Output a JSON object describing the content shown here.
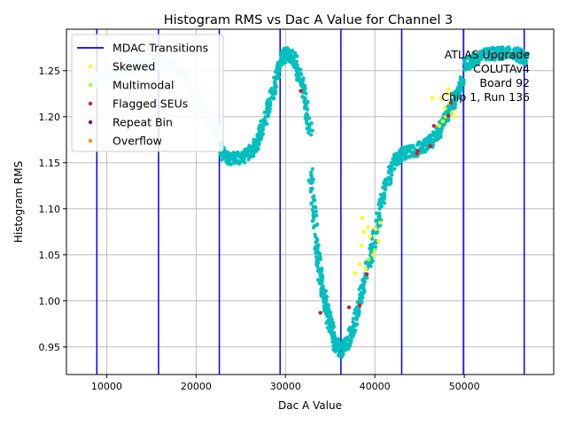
{
  "chart_data": {
    "type": "scatter",
    "title": "Histogram RMS vs Dac A Value for Channel 3",
    "xlabel": "Dac A Value",
    "ylabel": "Histogram RMS",
    "xlim": [
      5500,
      60000
    ],
    "ylim": [
      0.92,
      1.295
    ],
    "xticks": [
      10000,
      20000,
      30000,
      40000,
      50000
    ],
    "xtick_labels": [
      "10000",
      "20000",
      "30000",
      "40000",
      "50000"
    ],
    "yticks": [
      0.95,
      1.0,
      1.05,
      1.1,
      1.15,
      1.2,
      1.25
    ],
    "ytick_labels": [
      "0.95",
      "1.00",
      "1.05",
      "1.10",
      "1.15",
      "1.20",
      "1.25"
    ],
    "grid": true,
    "legend_position": "upper-left",
    "annotation_lines": [
      "ATLAS Upgrade",
      "COLUTAv4",
      "Board 92",
      "Chip 1, Run 136"
    ],
    "mdac_transitions": [
      8900,
      15800,
      22600,
      29400,
      36200,
      43000,
      49900,
      56700
    ],
    "legend": [
      {
        "label": "MDAC Transitions",
        "kind": "line",
        "color": "#0000ff"
      },
      {
        "label": "Skewed",
        "kind": "dot",
        "color": "#ffff00"
      },
      {
        "label": "Multimodal",
        "kind": "dot",
        "color": "#adff2f"
      },
      {
        "label": "Flagged SEUs",
        "kind": "dot",
        "color": "#cc2222"
      },
      {
        "label": "Repeat Bin",
        "kind": "dot",
        "color": "#800080"
      },
      {
        "label": "Overflow",
        "kind": "dot",
        "color": "#ff8c00"
      }
    ],
    "main_series_colors": {
      "teal": "#00bfbf",
      "light_cyan": "#bff0f0"
    },
    "curve_segments": [
      {
        "x": [
          8000,
          9000,
          10500,
          12000,
          14000,
          16000,
          17500,
          19000,
          20500,
          22000,
          22600
        ],
        "y": [
          1.235,
          1.24,
          1.245,
          1.252,
          1.258,
          1.26,
          1.255,
          1.24,
          1.215,
          1.19,
          1.178
        ],
        "color": "light_cyan"
      },
      {
        "x": [
          22600,
          23500,
          25000,
          26500,
          27500,
          28500,
          29400,
          30000,
          31000,
          32000,
          32800
        ],
        "y": [
          1.165,
          1.155,
          1.155,
          1.165,
          1.19,
          1.225,
          1.26,
          1.27,
          1.262,
          1.23,
          1.18
        ],
        "color": "teal"
      },
      {
        "x": [
          32800,
          33500,
          34000,
          34500,
          35000,
          35500,
          36200
        ],
        "y": [
          1.14,
          1.06,
          1.02,
          0.995,
          0.975,
          0.955,
          0.945
        ],
        "color": "teal"
      },
      {
        "x": [
          36200,
          37000,
          38000,
          39000,
          40000,
          41000,
          42000,
          43000
        ],
        "y": [
          0.945,
          0.955,
          0.985,
          1.03,
          1.07,
          1.12,
          1.148,
          1.16
        ],
        "color": "teal"
      },
      {
        "x": [
          43000,
          44500,
          46000,
          47000,
          48000,
          49000,
          49900
        ],
        "y": [
          1.16,
          1.163,
          1.17,
          1.18,
          1.2,
          1.22,
          1.24
        ],
        "color": "teal"
      },
      {
        "x": [
          49900,
          51500,
          53000,
          54500,
          56000,
          57000
        ],
        "y": [
          1.255,
          1.265,
          1.268,
          1.27,
          1.268,
          1.262
        ],
        "color": "teal"
      }
    ],
    "skewed_points": [
      {
        "x": 38500,
        "y": 1.06
      },
      {
        "x": 38800,
        "y": 1.075
      },
      {
        "x": 39200,
        "y": 1.08
      },
      {
        "x": 39500,
        "y": 1.07
      },
      {
        "x": 39800,
        "y": 1.05
      },
      {
        "x": 40100,
        "y": 1.078
      },
      {
        "x": 40400,
        "y": 1.065
      },
      {
        "x": 38300,
        "y": 1.04
      },
      {
        "x": 39000,
        "y": 1.035
      },
      {
        "x": 40600,
        "y": 1.085
      },
      {
        "x": 37800,
        "y": 1.03
      },
      {
        "x": 38600,
        "y": 1.09
      },
      {
        "x": 47400,
        "y": 1.22
      },
      {
        "x": 47800,
        "y": 1.21
      },
      {
        "x": 48100,
        "y": 1.225
      },
      {
        "x": 48400,
        "y": 1.215
      },
      {
        "x": 48700,
        "y": 1.205
      },
      {
        "x": 47600,
        "y": 1.195
      },
      {
        "x": 48900,
        "y": 1.2
      },
      {
        "x": 47200,
        "y": 1.19
      },
      {
        "x": 48200,
        "y": 1.23
      },
      {
        "x": 46400,
        "y": 1.22
      }
    ],
    "multimodal_points": [
      {
        "x": 39300,
        "y": 1.045
      },
      {
        "x": 40000,
        "y": 1.055
      },
      {
        "x": 47900,
        "y": 1.2
      }
    ],
    "flagged_seu_points": [
      {
        "x": 31700,
        "y": 1.228
      },
      {
        "x": 33900,
        "y": 0.987
      },
      {
        "x": 37100,
        "y": 0.993
      },
      {
        "x": 38300,
        "y": 0.995
      },
      {
        "x": 39100,
        "y": 1.029
      },
      {
        "x": 44700,
        "y": 1.16
      },
      {
        "x": 44800,
        "y": 1.163
      },
      {
        "x": 46200,
        "y": 1.168
      },
      {
        "x": 46600,
        "y": 1.19
      },
      {
        "x": 48200,
        "y": 1.201
      },
      {
        "x": 48500,
        "y": 1.215
      }
    ]
  }
}
